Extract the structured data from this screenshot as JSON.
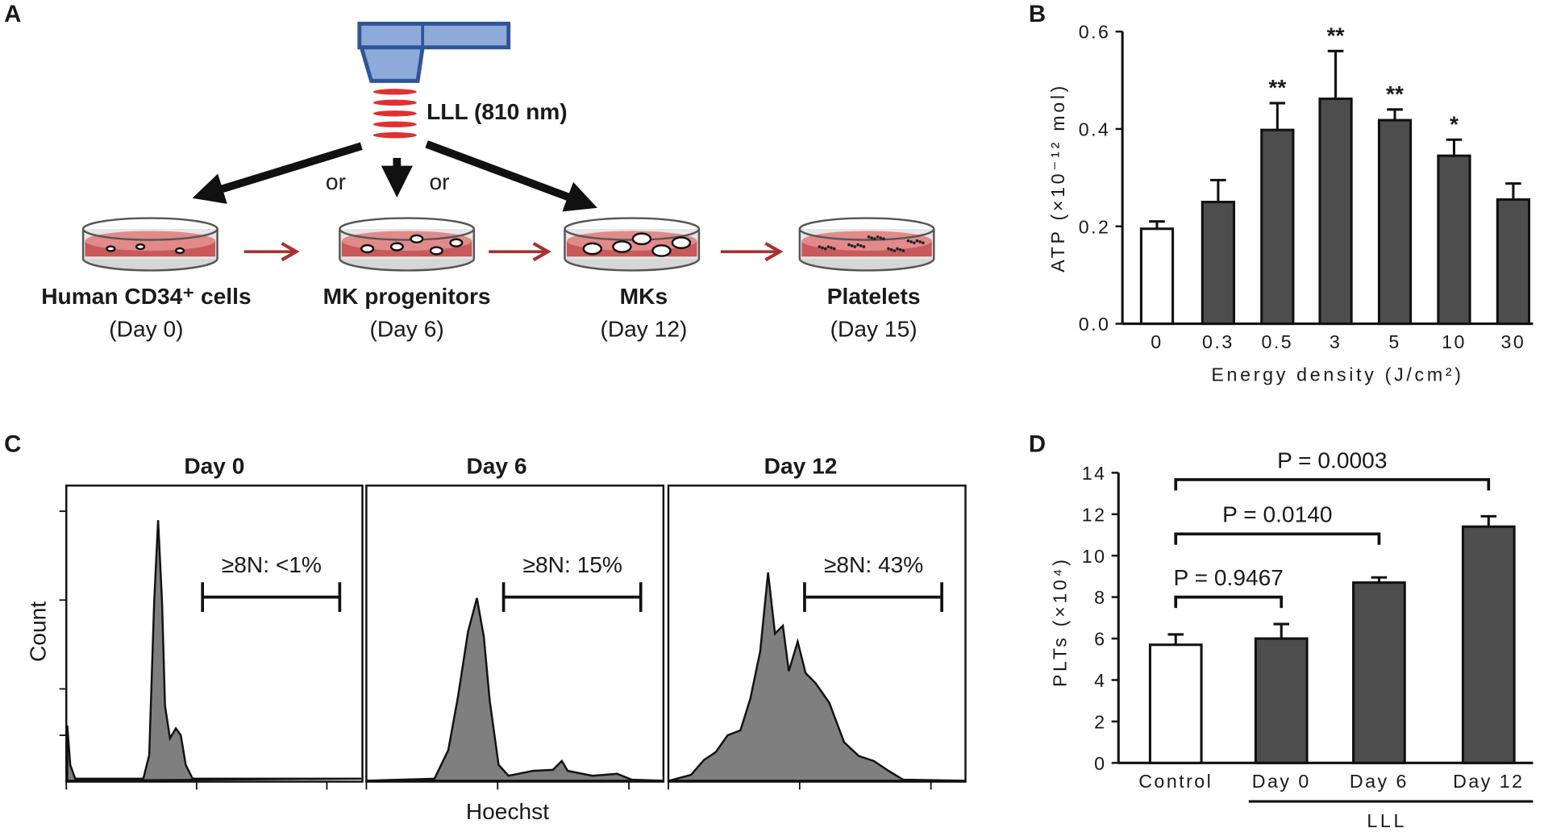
{
  "panel_labels": [
    "A",
    "B",
    "C",
    "D"
  ],
  "diagram": {
    "laser_label": "LLL (810 nm)",
    "or_labels": [
      "or",
      "or"
    ],
    "stages": [
      {
        "name": "Human CD34⁺ cells",
        "day": "(Day 0)"
      },
      {
        "name": "MK progenitors",
        "day": "(Day 6)"
      },
      {
        "name": "MKs",
        "day": "(Day 12)"
      },
      {
        "name": "Platelets",
        "day": "(Day 15)"
      }
    ]
  },
  "histograms": {
    "x_label": "Hoechst",
    "y_label": "Count",
    "panels": [
      {
        "title": "Day 0",
        "gate": "≥8N: <1%"
      },
      {
        "title": "Day 6",
        "gate": "≥8N: 15%"
      },
      {
        "title": "Day 12",
        "gate": "≥8N: 43%"
      }
    ]
  },
  "chart_data": [
    {
      "type": "bar",
      "x_label": "Energy density (J/cm²)",
      "y_label": "ATP (×10⁻¹² mol)",
      "categories": [
        "0",
        "0.3",
        "0.5",
        "3",
        "5",
        "10",
        "30"
      ],
      "values": [
        0.195,
        0.25,
        0.398,
        0.462,
        0.418,
        0.345,
        0.255
      ],
      "errors": [
        0.015,
        0.045,
        0.055,
        0.098,
        0.022,
        0.033,
        0.033
      ],
      "colors": [
        "#ffffff",
        "#4d4d4d",
        "#4d4d4d",
        "#4d4d4d",
        "#4d4d4d",
        "#4d4d4d",
        "#4d4d4d"
      ],
      "annotations": [
        null,
        null,
        "**",
        "**",
        "**",
        "*",
        null
      ],
      "ylim": [
        0,
        0.6
      ],
      "yticks": [
        {
          "value": 0,
          "label": "0.0"
        },
        0.2,
        0.4,
        0.6
      ]
    },
    {
      "type": "bar",
      "y_label": "PLTs (×10⁴)",
      "group_label": "LLL",
      "categories": [
        "Control",
        "Day 0",
        "Day 6",
        "Day 12"
      ],
      "values": [
        5.7,
        6.0,
        8.7,
        11.4
      ],
      "errors": [
        0.5,
        0.7,
        0.25,
        0.5
      ],
      "colors": [
        "#ffffff",
        "#4d4d4d",
        "#4d4d4d",
        "#4d4d4d"
      ],
      "comparisons": [
        "P = 0.9467",
        "P = 0.0140",
        "P = 0.0003"
      ],
      "ylim": [
        0,
        14
      ],
      "yticks": [
        0,
        2,
        4,
        6,
        8,
        10,
        12,
        14
      ]
    }
  ]
}
